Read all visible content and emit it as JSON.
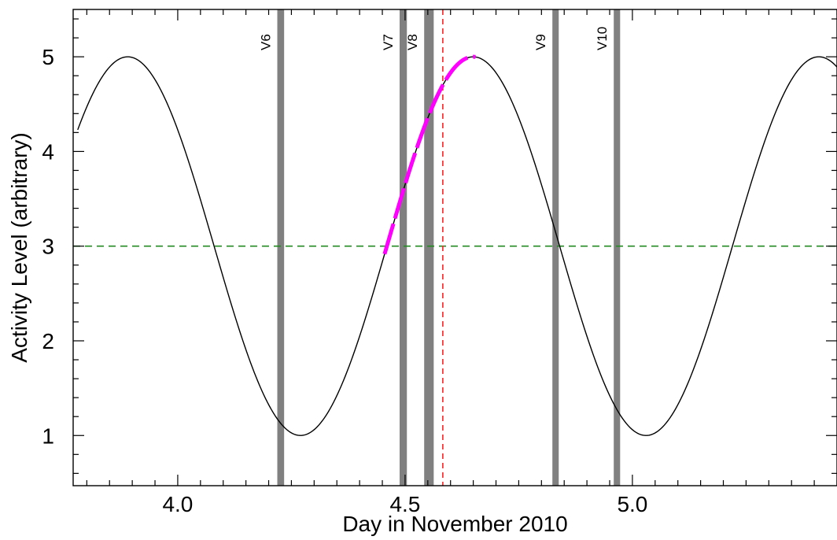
{
  "chart_data": {
    "type": "line",
    "title": "",
    "xlabel": "Day in November 2010",
    "ylabel": "Activity Level (arbitrary)",
    "xlim": [
      3.77,
      5.45
    ],
    "ylim": [
      0.47,
      5.5
    ],
    "x_ticks": [
      {
        "value": 4.0,
        "label": "4.0"
      },
      {
        "value": 4.5,
        "label": "4.5"
      },
      {
        "value": 5.0,
        "label": "5.0"
      }
    ],
    "x_minor_step": 0.05,
    "y_ticks": [
      {
        "value": 1,
        "label": "1"
      },
      {
        "value": 2,
        "label": "2"
      },
      {
        "value": 3,
        "label": "3"
      },
      {
        "value": 4,
        "label": "4"
      },
      {
        "value": 5,
        "label": "5"
      }
    ],
    "y_minor_step": 0.2,
    "curve": {
      "model": "sinusoid",
      "mean": 3.0,
      "amplitude": 2.0,
      "period_days": 0.76,
      "peak_day": 3.89,
      "x_start": 3.78,
      "x_end": 5.45,
      "color": "#000000"
    },
    "highlight": {
      "x_start": 4.455,
      "x_end": 4.655,
      "style": "dashed",
      "color": "#ff00ff"
    },
    "threshold_line": {
      "y": 3.0,
      "color": "#228b22",
      "style": "dashed"
    },
    "marker_line": {
      "x": 4.583,
      "color": "#ff2020",
      "style": "dashed"
    },
    "bands": [
      {
        "label": "V6",
        "x_start": 4.219,
        "x_end": 4.234
      },
      {
        "label": "V7",
        "x_start": 4.488,
        "x_end": 4.504
      },
      {
        "label": "V8",
        "x_start": 4.542,
        "x_end": 4.563
      },
      {
        "label": "V9",
        "x_start": 4.824,
        "x_end": 4.838
      },
      {
        "label": "V10",
        "x_start": 4.959,
        "x_end": 4.973
      }
    ],
    "band_color": "#808080",
    "grid": false,
    "legend": "none"
  }
}
